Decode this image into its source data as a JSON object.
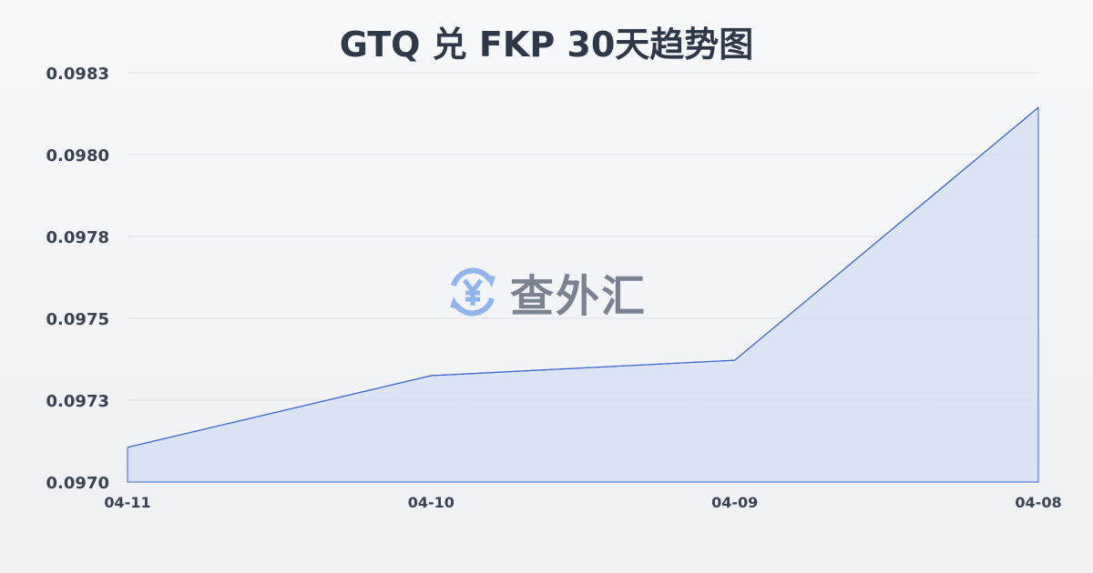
{
  "chart_data": {
    "type": "area",
    "title": "GTQ 兑 FKP 30天趋势图",
    "categories": [
      "04-11",
      "04-10",
      "04-09",
      "04-08"
    ],
    "values": [
      0.097106,
      0.097325,
      0.097372,
      0.098144
    ],
    "y_ticks": [
      "0.0970",
      "0.0973",
      "0.0975",
      "0.0978",
      "0.0980",
      "0.0983"
    ],
    "ylim": [
      0.097,
      0.09825
    ],
    "grid": true,
    "colors": {
      "line": "#3a62d0",
      "fill": "#d6e0f5"
    }
  },
  "watermark": {
    "text": "查外汇",
    "icon": "yen-exchange-icon"
  }
}
